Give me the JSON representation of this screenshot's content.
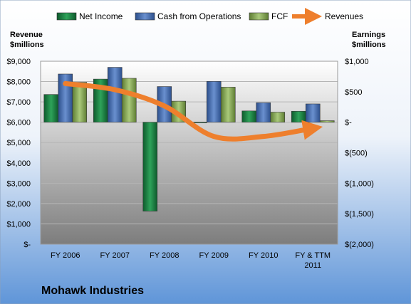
{
  "chart_data": {
    "type": "bar",
    "title": "Mohawk Industries",
    "categories": [
      [
        "FY 2006"
      ],
      [
        "FY 2007"
      ],
      [
        "FY 2008"
      ],
      [
        "FY 2009"
      ],
      [
        "FY 2010"
      ],
      [
        "FY & TTM",
        "2011"
      ]
    ],
    "left_axis": {
      "title": [
        "Revenue",
        "$millions"
      ],
      "range": [
        0,
        9000
      ],
      "ticks": [
        0,
        1000,
        2000,
        3000,
        4000,
        5000,
        6000,
        7000,
        8000,
        9000
      ],
      "tick_labels": [
        "$-",
        "$1,000",
        "$2,000",
        "$3,000",
        "$4,000",
        "$5,000",
        "$6,000",
        "$7,000",
        "$8,000",
        "$9,000"
      ]
    },
    "right_axis": {
      "title": [
        "Earnings",
        "$millions"
      ],
      "range": [
        -2000,
        1000
      ],
      "ticks": [
        -2000,
        -1500,
        -1000,
        -500,
        0,
        500,
        1000
      ],
      "tick_labels": [
        "$(2,000)",
        "$(1,500)",
        "$(1,000)",
        "$(500)",
        "$-",
        "$500",
        "$1,000"
      ]
    },
    "series": [
      {
        "name": "Net Income",
        "axis": "right",
        "color": "#1e8a4a",
        "values": [
          455,
          707,
          -1458,
          -5,
          185,
          180
        ]
      },
      {
        "name": "Cash from Operations",
        "axis": "right",
        "color": "#4f76b8",
        "values": [
          790,
          900,
          585,
          670,
          320,
          300
        ]
      },
      {
        "name": "FCF",
        "axis": "right",
        "color": "#8fb35a",
        "values": [
          655,
          720,
          345,
          575,
          165,
          25
        ]
      },
      {
        "name": "Revenues",
        "axis": "left",
        "type": "line",
        "color": "#ee7f2d",
        "values": [
          7900,
          7600,
          6800,
          5300,
          5300,
          5700
        ]
      }
    ],
    "legend_position": "top",
    "grid": true
  }
}
